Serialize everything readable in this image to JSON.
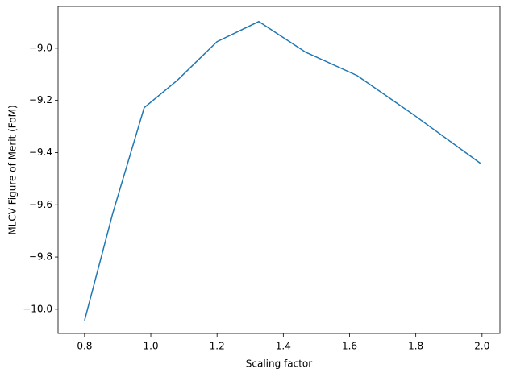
{
  "chart_data": {
    "type": "line",
    "x_label": "Scaling factor",
    "y_label": "MLCV Figure of Merit (FoM)",
    "x": [
      0.8,
      0.885,
      0.98,
      1.08,
      1.2,
      1.326,
      1.467,
      1.623,
      1.791,
      1.995
    ],
    "series": [
      {
        "color": "#1f77b4",
        "values": [
          -10.043,
          -9.633,
          -9.228,
          -9.123,
          -8.975,
          -8.898,
          -9.015,
          -9.105,
          -9.253,
          -9.441
        ]
      }
    ],
    "xlim": [
      0.72,
      2.054
    ],
    "ylim": [
      -10.093,
      -8.84
    ],
    "xticks": [
      0.8,
      {
        "value": 1,
        "label": "1.0"
      },
      1.2,
      1.4,
      1.6,
      1.8,
      {
        "value": 2,
        "label": "2.0"
      }
    ],
    "yticks": [
      {
        "value": -10,
        "label": "−10.0"
      },
      {
        "value": -9.8,
        "label": "−9.8"
      },
      {
        "value": -9.6,
        "label": "−9.6"
      },
      {
        "value": -9.4,
        "label": "−9.4"
      },
      {
        "value": -9.2,
        "label": "−9.2"
      },
      {
        "value": -9,
        "label": "−9.0"
      }
    ],
    "grid": false
  }
}
